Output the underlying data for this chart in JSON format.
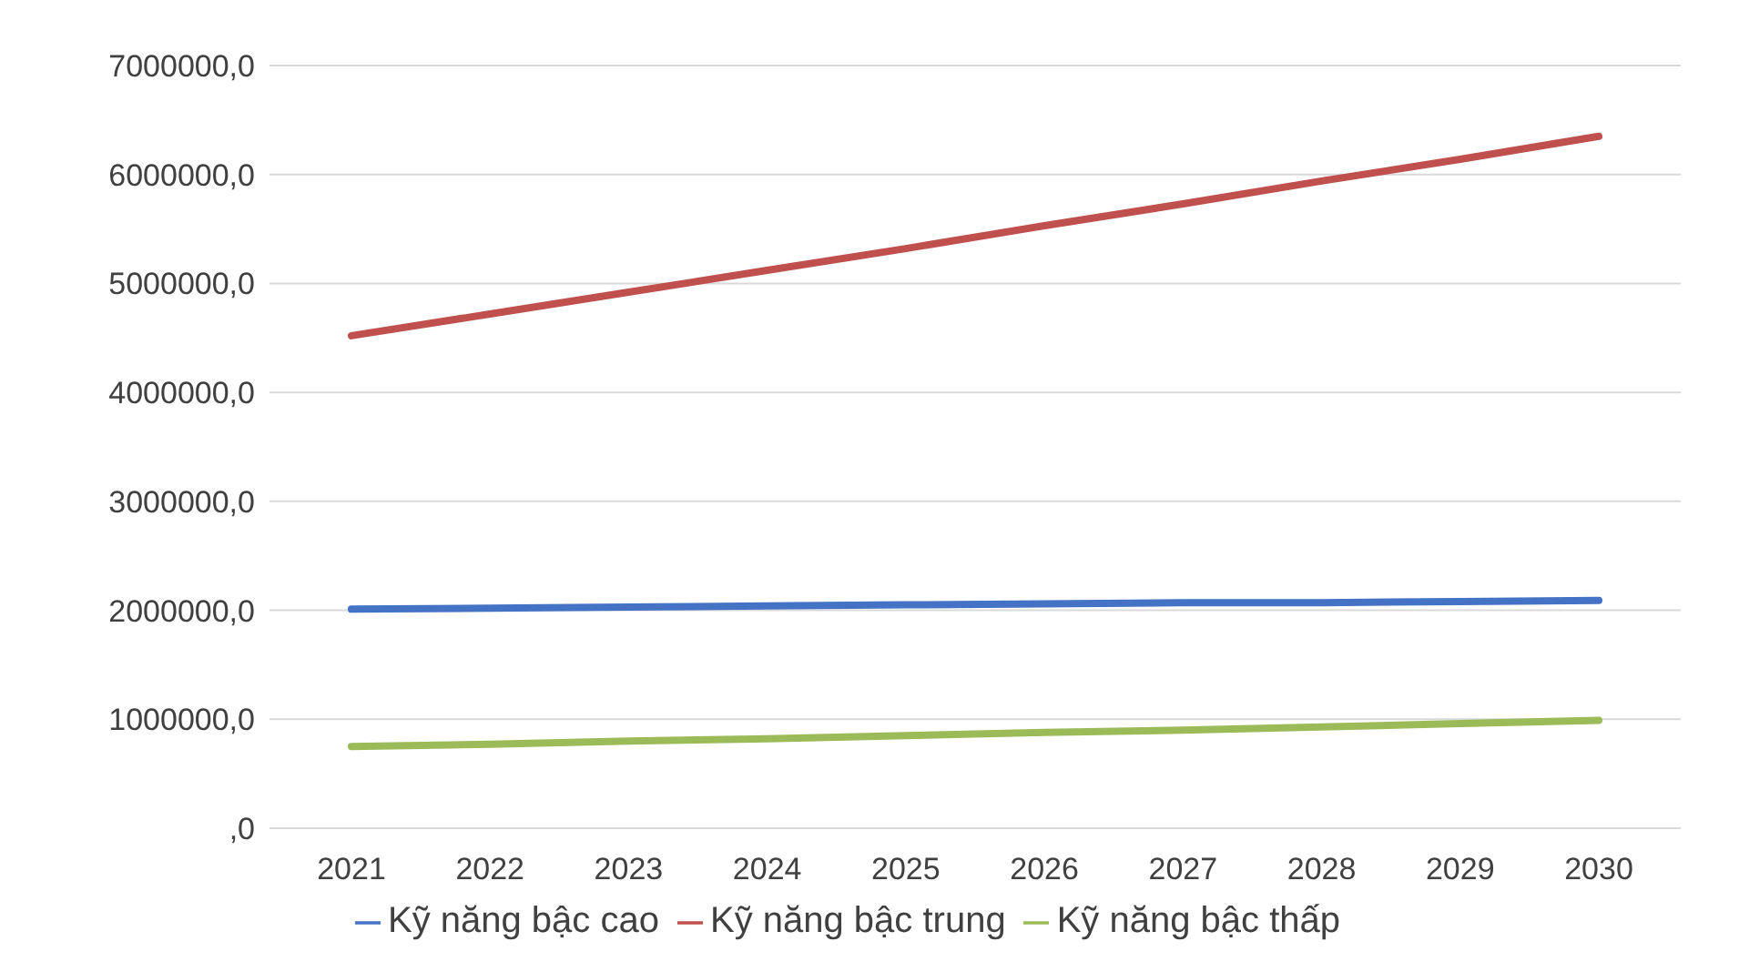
{
  "chart_data": {
    "type": "line",
    "categories": [
      "2021",
      "2022",
      "2023",
      "2024",
      "2025",
      "2026",
      "2027",
      "2028",
      "2029",
      "2030"
    ],
    "series": [
      {
        "name": "Kỹ năng bậc cao",
        "color": "#4472c4",
        "values": [
          2010000,
          2020000,
          2030000,
          2040000,
          2050000,
          2060000,
          2070000,
          2070000,
          2080000,
          2090000
        ]
      },
      {
        "name": "Kỹ năng bậc trung",
        "color": "#c0504d",
        "values": [
          4520000,
          4720000,
          4920000,
          5120000,
          5320000,
          5530000,
          5730000,
          5940000,
          6140000,
          6350000
        ]
      },
      {
        "name": "Kỹ năng bậc thấp",
        "color": "#9bbb59",
        "values": [
          750000,
          770000,
          800000,
          820000,
          850000,
          880000,
          900000,
          930000,
          960000,
          990000
        ]
      }
    ],
    "ylim": [
      0,
      7000000
    ],
    "yticks": [
      {
        "value": 0,
        "label": ",0"
      },
      {
        "value": 1000000,
        "label": "1000000,0"
      },
      {
        "value": 2000000,
        "label": "2000000,0"
      },
      {
        "value": 3000000,
        "label": "3000000,0"
      },
      {
        "value": 4000000,
        "label": "4000000,0"
      },
      {
        "value": 5000000,
        "label": "5000000,0"
      },
      {
        "value": 6000000,
        "label": "6000000,0"
      },
      {
        "value": 7000000,
        "label": "7000000,0"
      }
    ],
    "grid": "y",
    "legend": "bottom",
    "marker": "none",
    "line_style": "solid"
  }
}
